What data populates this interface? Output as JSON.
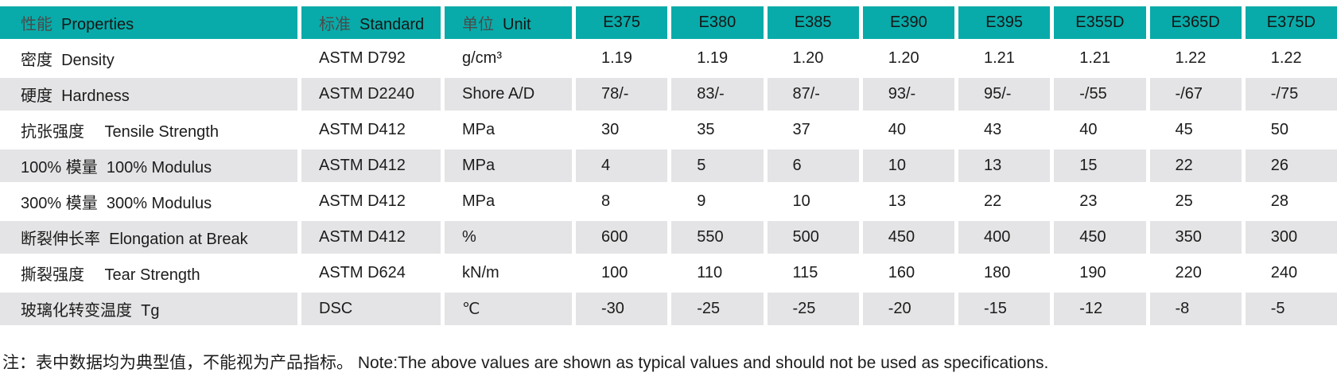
{
  "table": {
    "header": {
      "properties": {
        "zh": "性能",
        "en": "Properties"
      },
      "standard": {
        "zh": "标准",
        "en": "Standard"
      },
      "unit": {
        "zh": "单位",
        "en": "Unit"
      },
      "grades": [
        "E375",
        "E380",
        "E385",
        "E390",
        "E395",
        "E355D",
        "E365D",
        "E375D"
      ]
    },
    "rows": [
      {
        "property": "密度  Density",
        "standard": "ASTM D792",
        "unit": "g/cm³",
        "values": [
          "1.19",
          "1.19",
          "1.20",
          "1.20",
          "1.21",
          "1.21",
          "1.22",
          "1.22"
        ]
      },
      {
        "property": "硬度  Hardness",
        "standard": "ASTM D2240",
        "unit": "Shore A/D",
        "values": [
          "78/-",
          "83/-",
          "87/-",
          "93/-",
          "95/-",
          "-/55",
          "-/67",
          "-/75"
        ]
      },
      {
        "property": "抗张强度　 Tensile Strength",
        "standard": "ASTM D412",
        "unit": "MPa",
        "values": [
          "30",
          "35",
          "37",
          "40",
          "43",
          "40",
          "45",
          "50"
        ]
      },
      {
        "property": "100% 模量  100% Modulus",
        "standard": "ASTM D412",
        "unit": "MPa",
        "values": [
          "4",
          "5",
          "6",
          "10",
          "13",
          "15",
          "22",
          "26"
        ]
      },
      {
        "property": "300% 模量  300% Modulus",
        "standard": "ASTM D412",
        "unit": "MPa",
        "values": [
          "8",
          "9",
          "10",
          "13",
          "22",
          "23",
          "25",
          "28"
        ]
      },
      {
        "property": "断裂伸长率  Elongation at Break",
        "standard": "ASTM D412",
        "unit": "%",
        "values": [
          "600",
          "550",
          "500",
          "450",
          "400",
          "450",
          "350",
          "300"
        ]
      },
      {
        "property": "撕裂强度　 Tear Strength",
        "standard": "ASTM D624",
        "unit": "kN/m",
        "values": [
          "100",
          "110",
          "115",
          "160",
          "180",
          "190",
          "220",
          "240"
        ]
      },
      {
        "property": "玻璃化转变温度  Tg",
        "standard": "DSC",
        "unit": "℃",
        "values": [
          "-30",
          "-25",
          "-25",
          "-20",
          "-15",
          "-12",
          "-8",
          "-5"
        ]
      }
    ]
  },
  "note": "注：表中数据均为典型值，不能视为产品指标。 Note:The above values are shown as typical values and should not be used as specifications.",
  "colors": {
    "header_bg": "#08aba9",
    "stripe_bg": "#e4e4e6",
    "text": "#1c1c1c",
    "header_zh_text": "#4b4b4b"
  }
}
